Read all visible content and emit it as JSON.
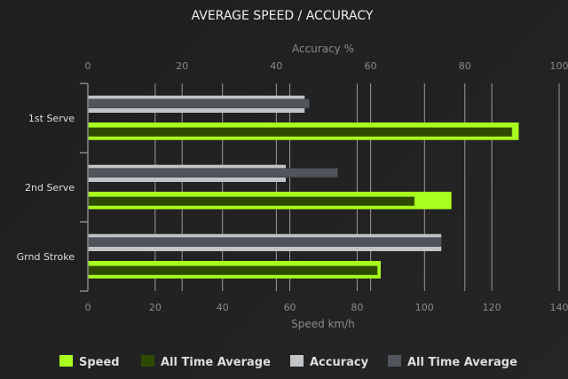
{
  "chart_data": {
    "type": "bar",
    "orientation": "horizontal",
    "title": "AVERAGE SPEED / ACCURACY",
    "categories": [
      "1st Serve",
      "2nd Serve",
      "Grnd Stroke"
    ],
    "x_bottom": {
      "label": "Speed km/h",
      "range": [
        0,
        140
      ],
      "ticks": [
        0,
        20,
        40,
        60,
        80,
        100,
        120,
        140
      ]
    },
    "x_top": {
      "label": "Accuracy %",
      "range": [
        0,
        100
      ],
      "ticks": [
        0,
        20,
        40,
        60,
        80,
        100
      ]
    },
    "grid": true,
    "legend_position": "bottom",
    "series": [
      {
        "name": "Speed",
        "axis": "bottom",
        "color": "#a8ff1f",
        "values": [
          128,
          108,
          87
        ]
      },
      {
        "name": "All Time Average",
        "axis": "bottom",
        "color": "#2e4a00",
        "values": [
          126,
          97,
          86
        ]
      },
      {
        "name": "Accuracy",
        "axis": "top",
        "color": "#c2c5c8",
        "values": [
          46,
          42,
          75
        ]
      },
      {
        "name": "All Time Average",
        "axis": "top",
        "color": "#50555c",
        "values": [
          47,
          53,
          75
        ]
      }
    ]
  }
}
